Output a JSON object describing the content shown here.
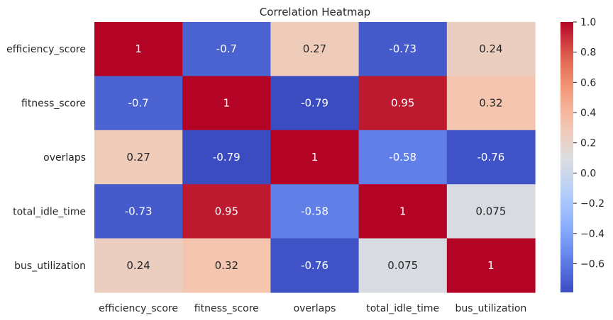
{
  "chart_data": {
    "type": "heatmap",
    "title": "Correlation Heatmap",
    "xlabel": "",
    "ylabel": "",
    "row_labels": [
      "efficiency_score",
      "fitness_score",
      "overlaps",
      "total_idle_time",
      "bus_utilization"
    ],
    "col_labels": [
      "efficiency_score",
      "fitness_score",
      "overlaps",
      "total_idle_time",
      "bus_utilization"
    ],
    "values": [
      [
        1,
        -0.7,
        0.27,
        -0.73,
        0.24
      ],
      [
        -0.7,
        1,
        -0.79,
        0.95,
        0.32
      ],
      [
        0.27,
        -0.79,
        1,
        -0.58,
        -0.76
      ],
      [
        -0.73,
        0.95,
        -0.58,
        1,
        0.075
      ],
      [
        0.24,
        0.32,
        -0.76,
        0.075,
        1
      ]
    ],
    "annotations": [
      [
        "1",
        "-0.7",
        "0.27",
        "-0.73",
        "0.24"
      ],
      [
        "-0.7",
        "1",
        "-0.79",
        "0.95",
        "0.32"
      ],
      [
        "0.27",
        "-0.79",
        "1",
        "-0.58",
        "-0.76"
      ],
      [
        "-0.73",
        "0.95",
        "-0.58",
        "1",
        "0.075"
      ],
      [
        "0.24",
        "0.32",
        "-0.76",
        "0.075",
        "1"
      ]
    ],
    "colormap": "coolwarm",
    "colorbar": {
      "vmin": -0.79,
      "vmax": 1.0,
      "ticks": [
        1.0,
        0.8,
        0.6,
        0.4,
        0.2,
        0.0,
        -0.2,
        -0.4,
        -0.6
      ],
      "tick_labels": [
        "1.0",
        "0.8",
        "0.6",
        "0.4",
        "0.2",
        "0.0",
        "−0.2",
        "−0.4",
        "−0.6"
      ]
    },
    "grid": false
  }
}
